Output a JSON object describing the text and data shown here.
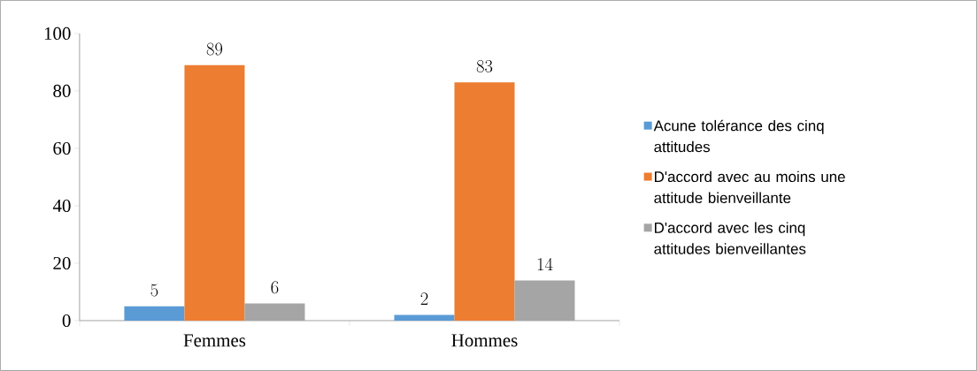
{
  "chart_data": {
    "type": "bar",
    "categories": [
      "Femmes",
      "Hommes"
    ],
    "series": [
      {
        "name": "Acune tolérance des cinq attitudes",
        "color": "#5b9bd5",
        "values": [
          5,
          2
        ]
      },
      {
        "name": "D'accord avec au moins une attitude bienveillante",
        "color": "#ed7d31",
        "values": [
          89,
          83
        ]
      },
      {
        "name": "D'accord avec les cinq attitudes bienveillantes",
        "color": "#a5a5a5",
        "values": [
          6,
          14
        ]
      }
    ],
    "ylim": [
      0,
      100
    ],
    "yticks": [
      0,
      20,
      40,
      60,
      80,
      100
    ],
    "data_labels": true,
    "grid": false,
    "legend": "right"
  }
}
